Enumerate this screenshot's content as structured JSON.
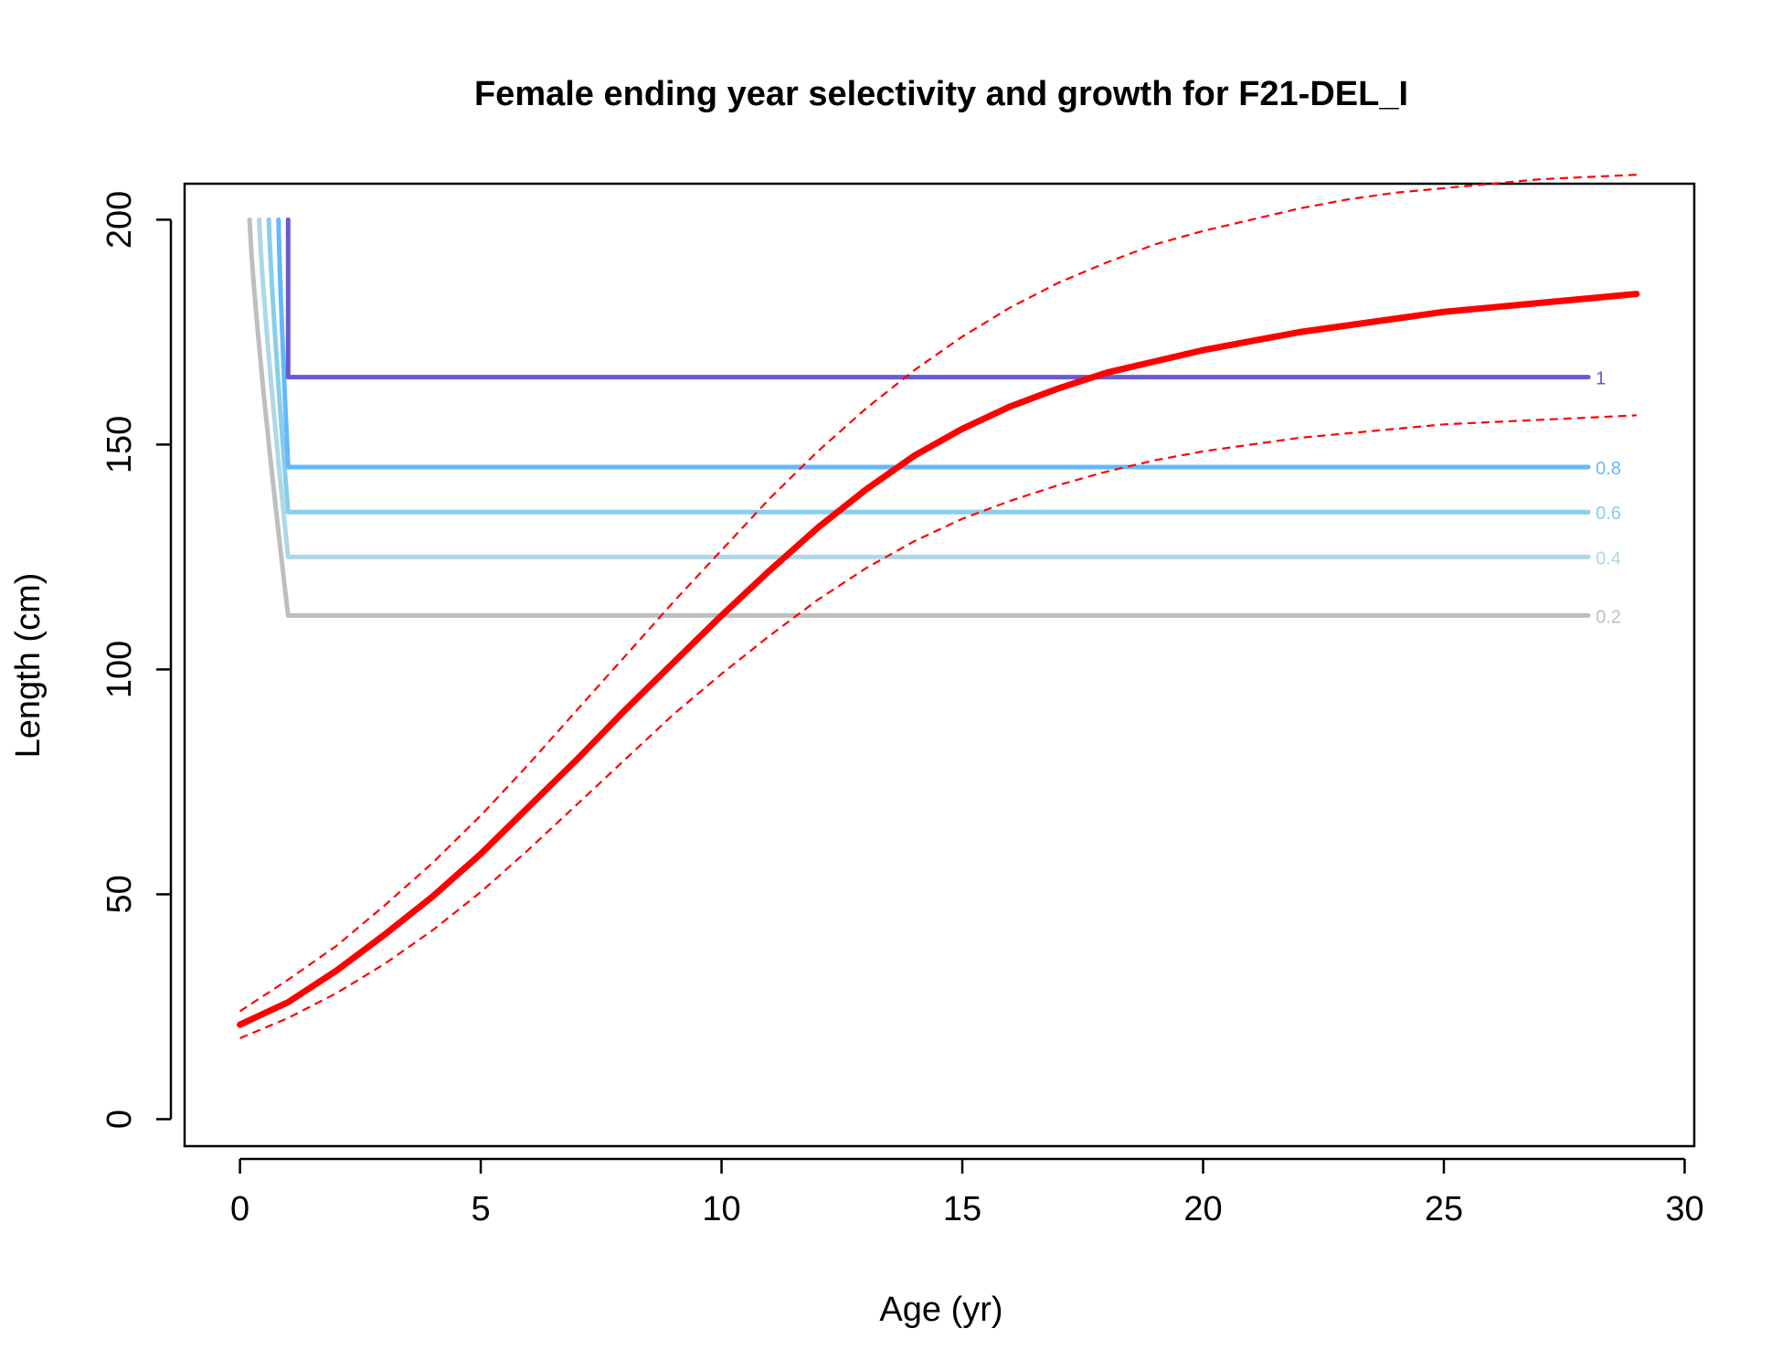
{
  "chart_data": {
    "type": "line",
    "title": "Female ending year selectivity and growth for F21-DEL_I",
    "xlabel": "Age (yr)",
    "ylabel": "Length (cm)",
    "xlim": [
      -1.15,
      30.2
    ],
    "ylim": [
      -6,
      208
    ],
    "xticks": [
      0,
      5,
      10,
      15,
      20,
      25,
      30
    ],
    "yticks": [
      0,
      50,
      100,
      150,
      200
    ],
    "grid": false,
    "legend": "none",
    "growth": {
      "color": "#ff0000",
      "ages": [
        0,
        1,
        2,
        3,
        4,
        5,
        6,
        7,
        8,
        9,
        10,
        11,
        12,
        13,
        14,
        15,
        16,
        17,
        18,
        19,
        20,
        21,
        22,
        23,
        24,
        25,
        26,
        27,
        28,
        29
      ],
      "mean": [
        21,
        26,
        33,
        41,
        49.5,
        59,
        69.5,
        80,
        91,
        101.5,
        112,
        122,
        131.5,
        140,
        147.5,
        153.5,
        158.5,
        162.5,
        166,
        168.5,
        171,
        173,
        175,
        176.5,
        178,
        179.5,
        180.5,
        181.5,
        182.5,
        183.5
      ],
      "upper": [
        24,
        31,
        38.5,
        47.5,
        57,
        67.5,
        79,
        91,
        103,
        115,
        126.5,
        138,
        148.5,
        158,
        166.5,
        174,
        180.5,
        186,
        190.5,
        194.5,
        197.5,
        200,
        202.5,
        204.5,
        206,
        207,
        208,
        209,
        209.5,
        210
      ],
      "lower": [
        18,
        22.5,
        28,
        34.5,
        42,
        50.5,
        60,
        70,
        80,
        90,
        99,
        107.5,
        115.5,
        122.5,
        128.5,
        133.5,
        137.5,
        141,
        144,
        146.5,
        148.5,
        150,
        151.5,
        152.5,
        153.5,
        154.5,
        155,
        155.5,
        156,
        156.5
      ]
    },
    "selectivity_contours": [
      {
        "label": "0.2",
        "level": 0.2,
        "color": "#bebebe",
        "length": 112,
        "x_start": 0.2
      },
      {
        "label": "0.4",
        "level": 0.4,
        "color": "#add8e6",
        "length": 125,
        "x_start": 0.4
      },
      {
        "label": "0.6",
        "level": 0.6,
        "color": "#87ceeb",
        "length": 135,
        "x_start": 0.6
      },
      {
        "label": "0.8",
        "level": 0.8,
        "color": "#63b8ff",
        "length": 145,
        "x_start": 0.8
      },
      {
        "label": "1",
        "level": 1,
        "color": "#6a5acd",
        "length": 165,
        "x_start": 1.0
      }
    ],
    "contour_top": 200,
    "contour_x_end": 28,
    "axis_color": "#000000"
  }
}
